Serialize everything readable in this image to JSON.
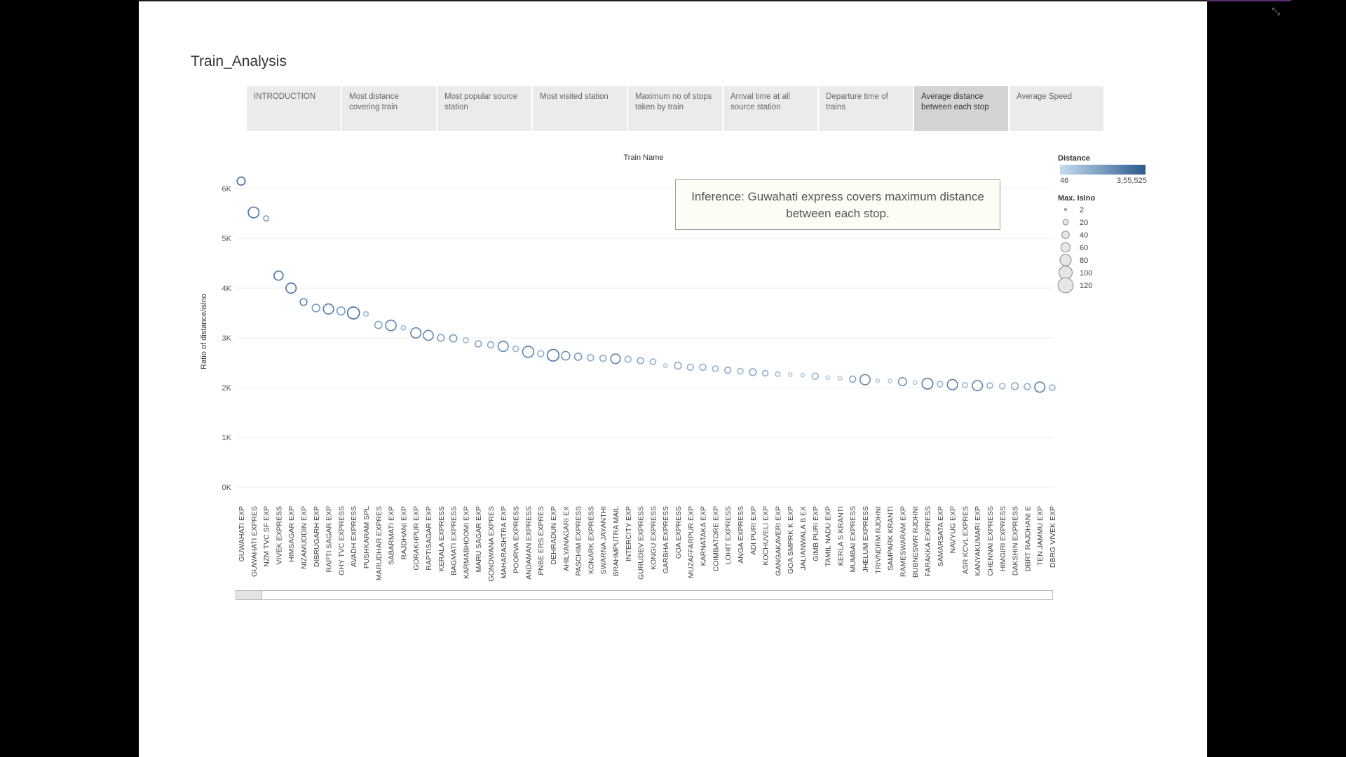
{
  "story": {
    "title": "Train_Analysis",
    "tabs": [
      {
        "label": "INTRODUCTION",
        "active": false
      },
      {
        "label": "Most distance covering train",
        "active": false
      },
      {
        "label": "Most popular source station",
        "active": false
      },
      {
        "label": "Most visited station",
        "active": false
      },
      {
        "label": "Maximum no of stops taken by train",
        "active": false
      },
      {
        "label": "Arrival time at all source station",
        "active": false
      },
      {
        "label": "Departure time of trains",
        "active": false
      },
      {
        "label": "Average distance between each stop",
        "active": true
      },
      {
        "label": "Average Speed",
        "active": false
      }
    ]
  },
  "inference": "Inference:  Guwahati express covers maximum distance between each stop.",
  "legend": {
    "color_title": "Distance",
    "color_min": "46",
    "color_max": "3,55,525",
    "colors": [
      "#c6dcef",
      "#2b5b8e"
    ],
    "size_title": "Max. Islno",
    "size_values": [
      "2",
      "20",
      "40",
      "60",
      "80",
      "100",
      "120"
    ]
  },
  "icons": {
    "exit_fullscreen": "exit-fullscreen-icon"
  },
  "chart_data": {
    "type": "scatter",
    "title": "Train Name",
    "ylabel": "Ratio of distance/islno",
    "ylim": [
      0,
      6300
    ],
    "yticks": [
      "0K",
      "1K",
      "2K",
      "3K",
      "4K",
      "5K",
      "6K"
    ],
    "categories": [
      "GUWAHATI EXP",
      "GUWAHATI EXPRES",
      "NZM TVC SF EXP",
      "VIVEK EXPRESS",
      "HIMSAGAR EXP",
      "NIZAMUDDIN EXP",
      "DIBRUGARH EXP",
      "RAPTI SAGAR EXP",
      "GHY TVC EXPRESS",
      "AVADH EXPRESS",
      "PUSHKARAM SPL",
      "MARUDHAR EXPRES",
      "SABARMATI EXP",
      "RAJDHANI EXP",
      "GORAKHPUR EXP",
      "RAPTISAGAR EXP",
      "KERALA EXPRESS",
      "BAGMATI EXPRESS",
      "KARMABHOOMI EXP",
      "MARU SAGAR EXP",
      "GONDWANA EXPRES",
      "MAHARASHTRA EXP",
      "POORVA EXPRESS",
      "ANDAMAN EXPRESS",
      "PNBE ERS EXPRES",
      "DEHRADUN EXP",
      "AHILYANAGARI EX",
      "PASCHIM EXPRESS",
      "KONARK EXPRESS",
      "SWARNA JAYANTHI",
      "BRAHMPUTRA MAIL",
      "INTERCITY EXP",
      "GURUDEV EXPRESS",
      "KONGU EXPRESS",
      "GARBHA EXPRESS",
      "GOA EXPRESS",
      "MUZAFFARPUR EXP",
      "KARNATAKA EXP",
      "COIMBATORE EXP",
      "LOHIT EXPRESS",
      "ANGA EXPRESS",
      "ADI PURI EXP",
      "KOCHUVELI EXP",
      "GANGAKAVERI EXP",
      "GOA SMPRK K EXP",
      "JALIANWALA B EX",
      "GIMB PURI EXP",
      "TAMIL NADU EXP",
      "KERLA S KRANTI",
      "MUMBAI EXPRESS",
      "JHELUM EXPRESS",
      "TRIVNDRM RJDHNI",
      "SAMPARK KRANTI",
      "RAMESWARAM EXP",
      "BUBNESWR RJDHNI",
      "FARAKKA EXPRESS",
      "SAMARSATA EXP",
      "NAVYUG EXP",
      "ASR KCVL EXPRES",
      "KANYAKUMARI EXP",
      "CHENNAI EXPRESS",
      "HIMGIRI EXPRESS",
      "DAKSHIN EXPRESS",
      "DBRT RAJDHANI E",
      "TEN JAMMU EXP",
      "DBRG VIVEK EXP"
    ],
    "values": [
      6150,
      5520,
      5400,
      4250,
      4000,
      3720,
      3600,
      3580,
      3540,
      3500,
      3480,
      3260,
      3250,
      3200,
      3100,
      3050,
      3000,
      2990,
      2950,
      2880,
      2860,
      2830,
      2780,
      2720,
      2680,
      2650,
      2640,
      2620,
      2600,
      2590,
      2580,
      2570,
      2540,
      2520,
      2440,
      2440,
      2410,
      2410,
      2380,
      2350,
      2330,
      2310,
      2290,
      2270,
      2260,
      2250,
      2230,
      2200,
      2190,
      2170,
      2160,
      2140,
      2130,
      2120,
      2100,
      2080,
      2070,
      2060,
      2050,
      2040,
      2040,
      2030,
      2030,
      2020,
      2010,
      2000
    ],
    "sizes": [
      25,
      45,
      10,
      32,
      40,
      18,
      22,
      40,
      25,
      55,
      8,
      20,
      42,
      7,
      40,
      38,
      18,
      20,
      10,
      15,
      15,
      40,
      12,
      48,
      15,
      52,
      28,
      20,
      15,
      15,
      35,
      15,
      15,
      12,
      5,
      18,
      15,
      15,
      12,
      15,
      12,
      18,
      12,
      8,
      5,
      5,
      15,
      5,
      5,
      15,
      40,
      5,
      5,
      25,
      5,
      45,
      12,
      40,
      10,
      40,
      12,
      12,
      18,
      15,
      40,
      12
    ],
    "colors": [
      0.85,
      0.82,
      0.45,
      0.8,
      0.8,
      0.7,
      0.5,
      0.75,
      0.5,
      0.85,
      0.3,
      0.45,
      0.7,
      0.3,
      0.7,
      0.65,
      0.45,
      0.5,
      0.3,
      0.45,
      0.4,
      0.65,
      0.3,
      0.7,
      0.35,
      0.8,
      0.55,
      0.5,
      0.4,
      0.4,
      0.7,
      0.35,
      0.4,
      0.35,
      0.2,
      0.4,
      0.35,
      0.35,
      0.35,
      0.4,
      0.3,
      0.4,
      0.35,
      0.25,
      0.15,
      0.15,
      0.35,
      0.15,
      0.15,
      0.4,
      0.65,
      0.15,
      0.15,
      0.55,
      0.15,
      0.75,
      0.3,
      0.7,
      0.3,
      0.7,
      0.35,
      0.3,
      0.4,
      0.35,
      0.7,
      0.35
    ],
    "grid": true
  }
}
